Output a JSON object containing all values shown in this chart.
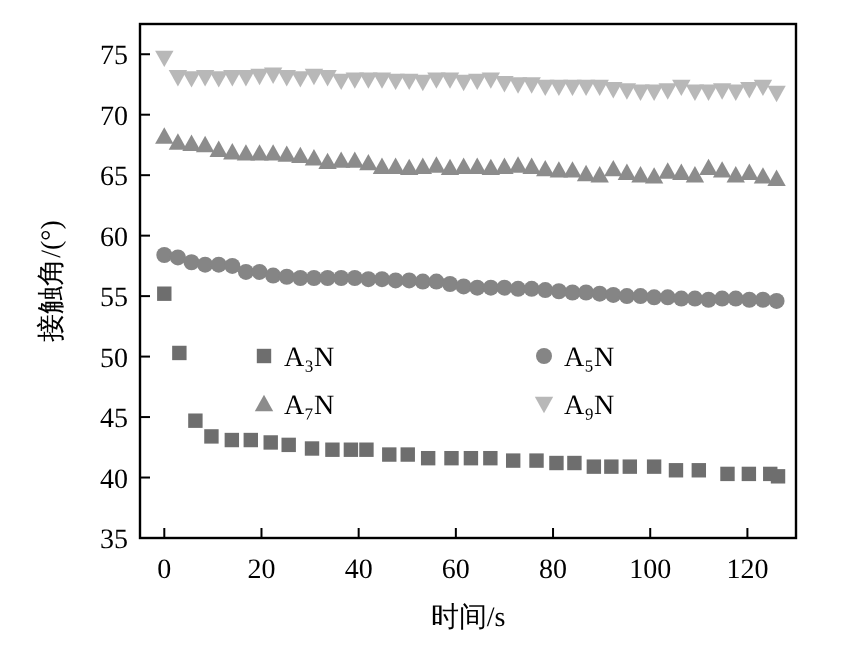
{
  "chart_data": {
    "type": "scatter",
    "xlabel": "时间/s",
    "ylabel": "接触角/(°)",
    "xlim": [
      -5,
      130
    ],
    "ylim": [
      35,
      77.5
    ],
    "xticks": [
      0,
      20,
      40,
      60,
      80,
      100,
      120
    ],
    "yticks": [
      35,
      40,
      45,
      50,
      55,
      60,
      65,
      70,
      75
    ],
    "grid": false,
    "legend": "center",
    "series": [
      {
        "name": "A₃N",
        "color": "#6e6e6e",
        "marker": "square",
        "x": [
          0,
          3.1,
          6.4,
          9.7,
          13.9,
          17.8,
          21.9,
          25.6,
          30.4,
          34.6,
          38.4,
          41.6,
          46.3,
          50.1,
          54.3,
          59.1,
          63.1,
          67.1,
          71.8,
          76.6,
          80.7,
          84.4,
          88.4,
          92.0,
          95.8,
          100.8,
          105.3,
          110,
          115.9,
          120.3,
          124.7,
          126.3
        ],
        "values": [
          55.2,
          50.3,
          44.7,
          43.4,
          43.1,
          43.1,
          42.9,
          42.7,
          42.4,
          42.3,
          42.3,
          42.3,
          41.9,
          41.9,
          41.6,
          41.6,
          41.6,
          41.6,
          41.4,
          41.4,
          41.2,
          41.2,
          40.9,
          40.9,
          40.9,
          40.9,
          40.6,
          40.6,
          40.3,
          40.3,
          40.3,
          40.1
        ]
      },
      {
        "name": "A₅N",
        "color": "#858585",
        "marker": "circle",
        "x": [
          0,
          2.8,
          5.6,
          8.4,
          11.2,
          14,
          16.8,
          19.6,
          22.4,
          25.2,
          28,
          30.8,
          33.6,
          36.4,
          39.2,
          42,
          44.8,
          47.6,
          50.4,
          53.2,
          56,
          58.8,
          61.6,
          64.4,
          67.2,
          70,
          72.8,
          75.6,
          78.4,
          81.2,
          84,
          86.8,
          89.6,
          92.4,
          95.2,
          98,
          100.8,
          103.6,
          106.4,
          109.2,
          112,
          114.8,
          117.6,
          120.4,
          123.2,
          126
        ],
        "values": [
          58.4,
          58.2,
          57.8,
          57.6,
          57.6,
          57.5,
          57.0,
          57.0,
          56.7,
          56.6,
          56.5,
          56.5,
          56.5,
          56.5,
          56.5,
          56.4,
          56.4,
          56.3,
          56.3,
          56.2,
          56.2,
          56.0,
          55.8,
          55.7,
          55.7,
          55.7,
          55.6,
          55.6,
          55.5,
          55.4,
          55.3,
          55.3,
          55.2,
          55.1,
          55.0,
          55.0,
          54.9,
          54.9,
          54.8,
          54.8,
          54.7,
          54.8,
          54.8,
          54.7,
          54.7,
          54.6
        ]
      },
      {
        "name": "A₇N",
        "color": "#8c8c8c",
        "marker": "triangle",
        "x": [
          0,
          2.8,
          5.6,
          8.4,
          11.2,
          14,
          16.8,
          19.6,
          22.4,
          25.2,
          28,
          30.8,
          33.6,
          36.4,
          39.2,
          42,
          44.8,
          47.6,
          50.4,
          53.2,
          56,
          58.8,
          61.6,
          64.4,
          67.2,
          70,
          72.8,
          75.6,
          78.4,
          81.2,
          84,
          86.8,
          89.6,
          92.4,
          95.2,
          98,
          100.8,
          103.6,
          106.4,
          109.2,
          112,
          114.8,
          117.6,
          120.4,
          123.2,
          126
        ],
        "values": [
          68.2,
          67.7,
          67.6,
          67.5,
          67.1,
          66.9,
          66.8,
          66.8,
          66.8,
          66.7,
          66.6,
          66.4,
          66.1,
          66.2,
          66.2,
          66.0,
          65.7,
          65.7,
          65.6,
          65.7,
          65.8,
          65.6,
          65.7,
          65.7,
          65.6,
          65.7,
          65.8,
          65.7,
          65.5,
          65.4,
          65.4,
          65.1,
          65.0,
          65.5,
          65.2,
          65.0,
          64.9,
          65.3,
          65.2,
          65.0,
          65.6,
          65.4,
          65.0,
          65.2,
          64.9,
          64.7
        ]
      },
      {
        "name": "A₉N",
        "color": "#b8b8b8",
        "marker": "triangle-down",
        "x": [
          0,
          2.8,
          5.6,
          8.4,
          11.2,
          14,
          16.8,
          19.6,
          22.4,
          25.2,
          28,
          30.8,
          33.6,
          36.4,
          39.2,
          42,
          44.8,
          47.6,
          50.4,
          53.2,
          56,
          58.8,
          61.6,
          64.4,
          67.2,
          70,
          72.8,
          75.6,
          78.4,
          81.2,
          84,
          86.8,
          89.6,
          92.4,
          95.2,
          98,
          100.8,
          103.6,
          106.4,
          109.2,
          112,
          114.8,
          117.6,
          120.4,
          123.2,
          126
        ],
        "values": [
          74.7,
          73.1,
          73.0,
          73.1,
          73.0,
          73.1,
          73.1,
          73.2,
          73.3,
          73.1,
          73.0,
          73.2,
          73.1,
          72.8,
          72.9,
          72.9,
          72.9,
          72.8,
          72.8,
          72.7,
          72.9,
          72.9,
          72.7,
          72.8,
          72.9,
          72.6,
          72.5,
          72.5,
          72.3,
          72.3,
          72.3,
          72.3,
          72.3,
          72.1,
          72.0,
          71.9,
          71.9,
          72.0,
          72.3,
          71.9,
          71.9,
          72.0,
          71.9,
          72.1,
          72.3,
          71.8
        ]
      }
    ]
  }
}
